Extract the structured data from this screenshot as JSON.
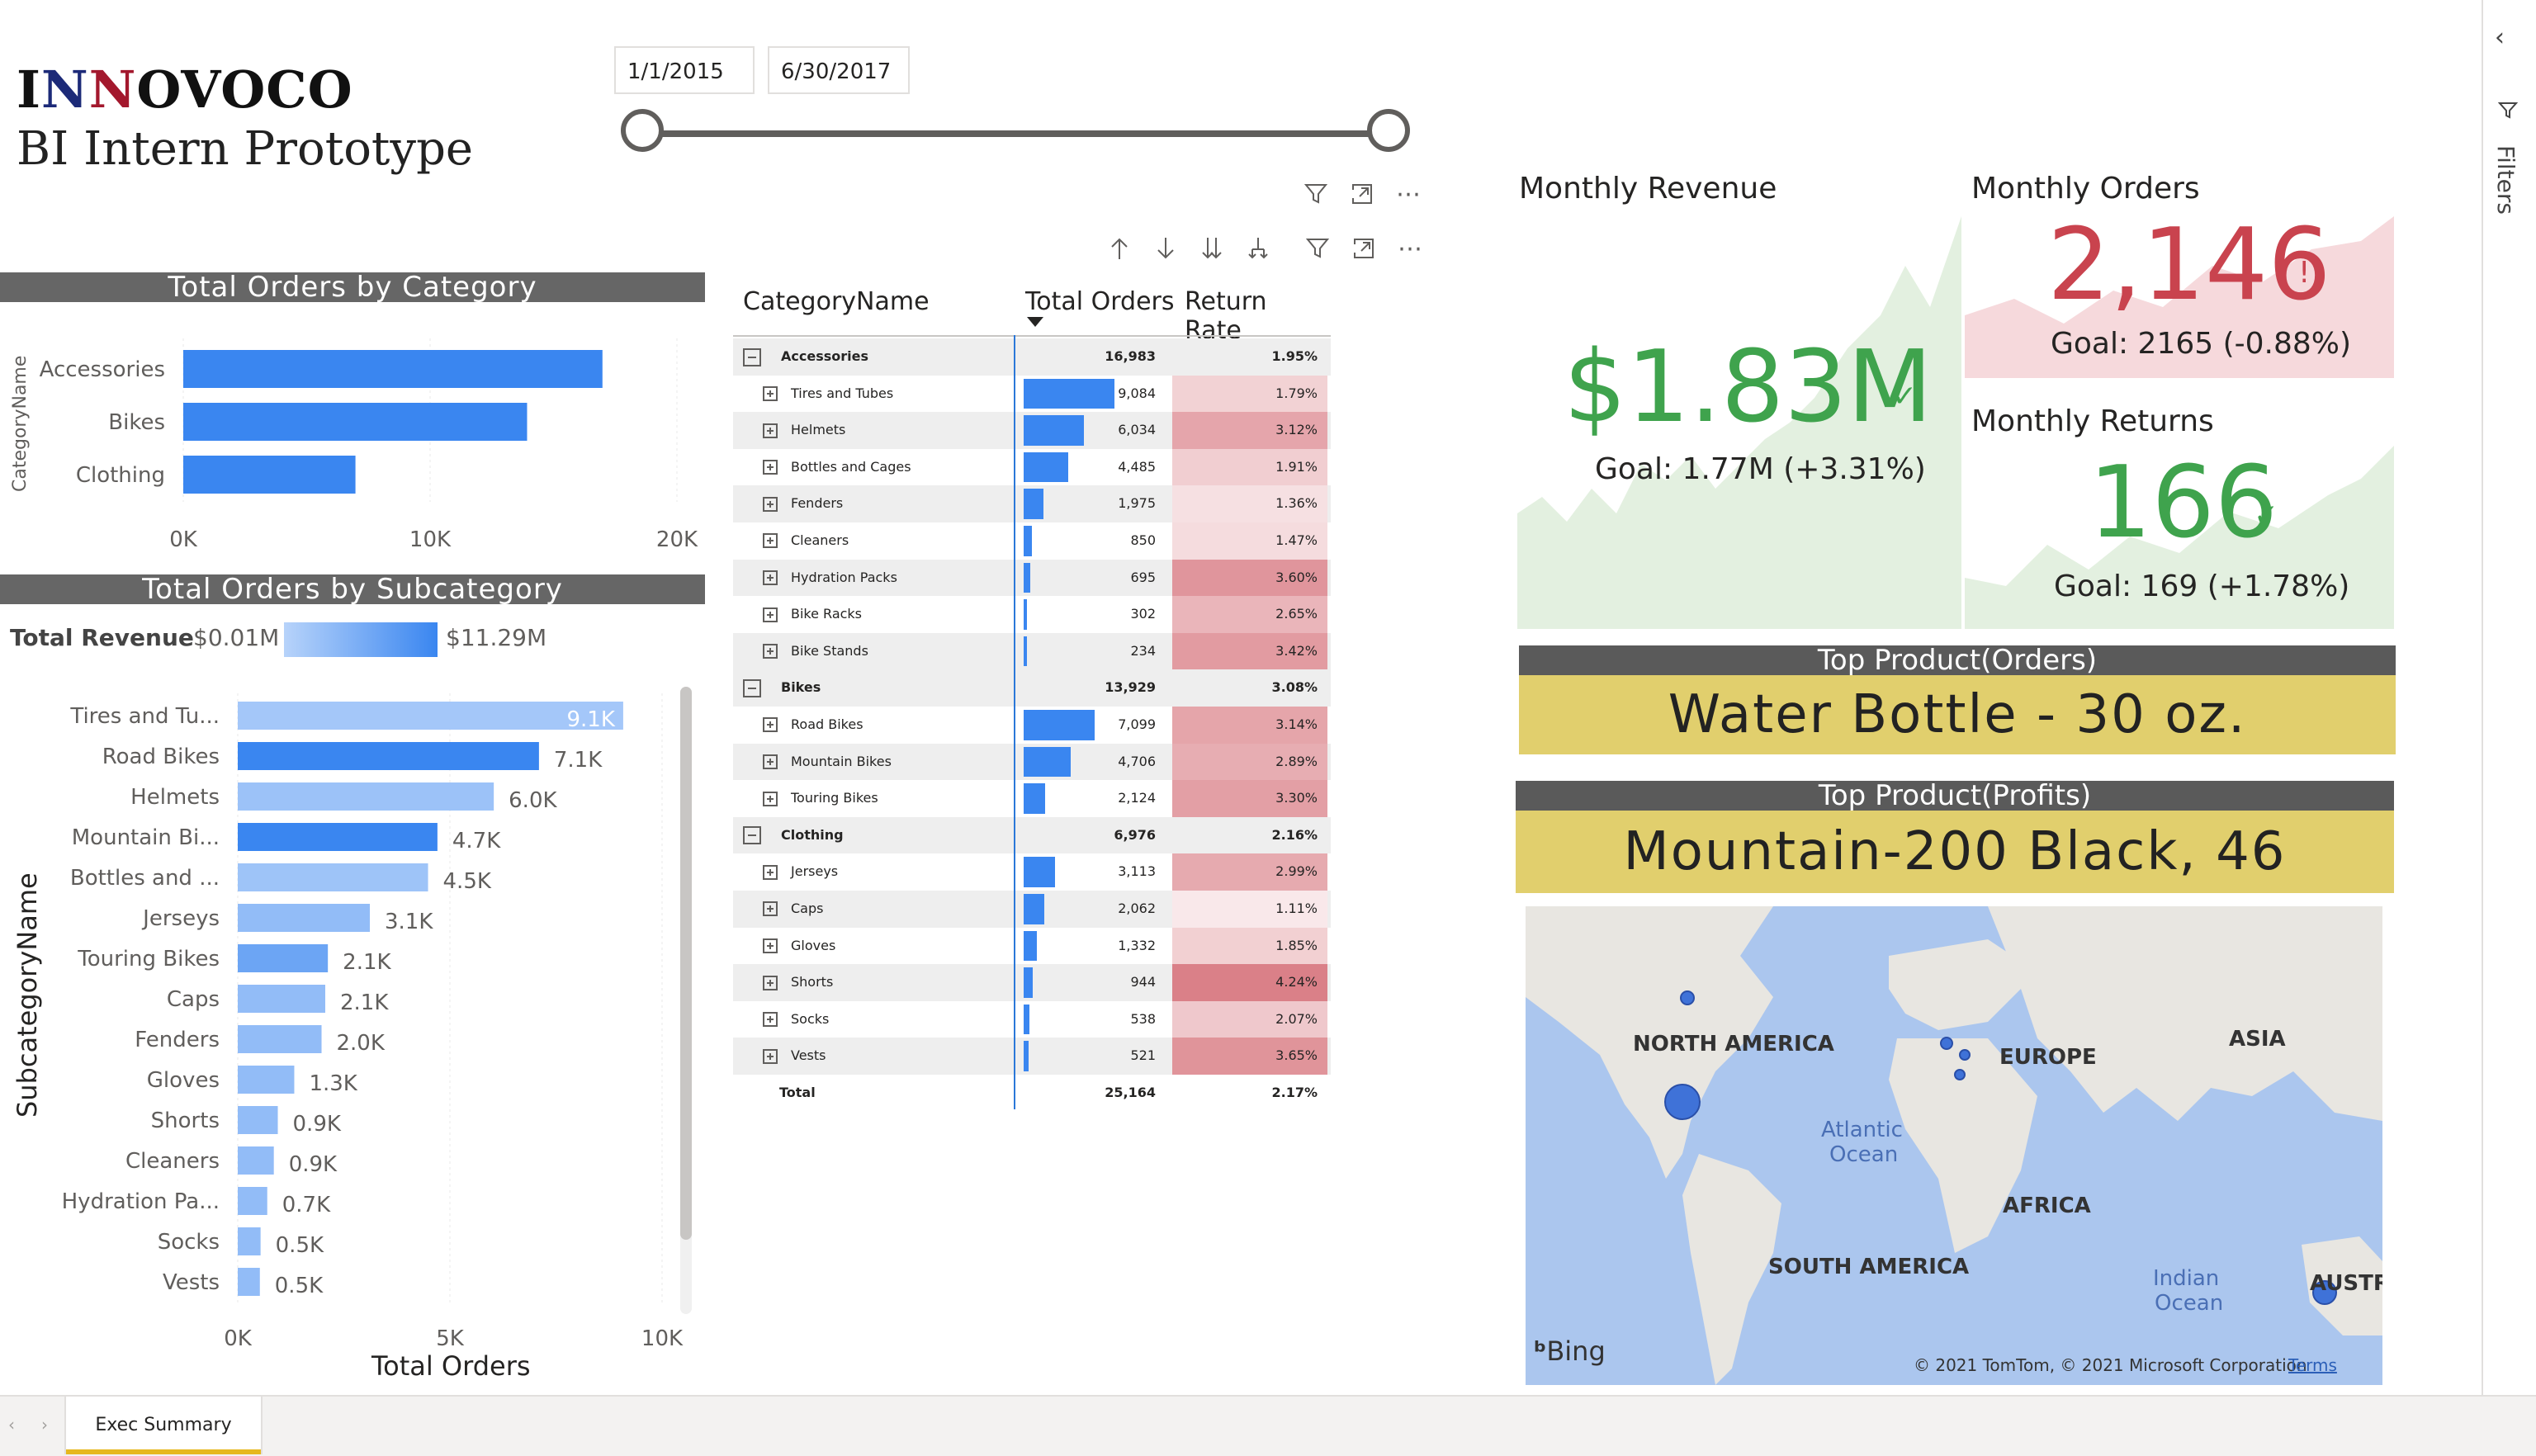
{
  "logo": {
    "part1": "I",
    "part2": "N",
    "part3": "N",
    "part4": "OVOCO"
  },
  "subtitle": "BI Intern Prototype",
  "slicer": {
    "start": "1/1/2015",
    "end": "6/30/2017"
  },
  "category_chart": {
    "title": "Total Orders by Category",
    "axis_label": "CategoryName",
    "ticks": [
      "0K",
      "10K",
      "20K"
    ]
  },
  "subcategory_chart": {
    "title": "Total Orders by Subcategory",
    "legend_label": "Total Revenue",
    "legend_min": "$0.01M",
    "legend_max": "$11.29M",
    "ylabel": "SubcategoryName",
    "xlabel": "Total Orders",
    "ticks": [
      "0K",
      "5K",
      "10K"
    ]
  },
  "chart_data": [
    {
      "type": "bar",
      "title": "Total Orders by Category",
      "ylabel": "CategoryName",
      "categories": [
        "Accessories",
        "Bikes",
        "Clothing"
      ],
      "values": [
        16983,
        13929,
        6976
      ],
      "xlim": [
        0,
        20000
      ],
      "grid": true
    },
    {
      "type": "bar",
      "title": "Total Orders by Subcategory",
      "xlabel": "Total Orders",
      "ylabel": "SubcategoryName",
      "categories": [
        "Tires and Tu...",
        "Road Bikes",
        "Helmets",
        "Mountain Bi...",
        "Bottles and ...",
        "Jerseys",
        "Touring Bikes",
        "Caps",
        "Fenders",
        "Gloves",
        "Shorts",
        "Cleaners",
        "Hydration Pa...",
        "Socks",
        "Vests"
      ],
      "values": [
        9084,
        7099,
        6034,
        4706,
        4485,
        3113,
        2124,
        2062,
        1975,
        1332,
        944,
        850,
        695,
        538,
        521
      ],
      "data_labels": [
        "9.1K",
        "7.1K",
        "6.0K",
        "4.7K",
        "4.5K",
        "3.1K",
        "2.1K",
        "2.1K",
        "2.0K",
        "1.3K",
        "0.9K",
        "0.9K",
        "0.7K",
        "0.5K",
        "0.5K"
      ],
      "color_scale": {
        "name": "Total Revenue",
        "min": "$0.01M",
        "max": "$11.29M"
      },
      "color_strength": [
        0.15,
        1.0,
        0.22,
        1.0,
        0.2,
        0.3,
        0.6,
        0.3,
        0.3,
        0.3,
        0.3,
        0.3,
        0.3,
        0.3,
        0.3
      ],
      "xlim": [
        0,
        10000
      ],
      "grid": true
    }
  ],
  "table": {
    "headers": [
      "CategoryName",
      "Total Orders",
      "Return Rate"
    ],
    "max_orders": 9084,
    "rows": [
      {
        "name": "Accessories",
        "orders": "16,983",
        "rate": "1.95%",
        "type": "cat"
      },
      {
        "name": "Tires and Tubes",
        "orders": "9,084",
        "rate": "1.79%",
        "value": 9084,
        "rr": 1.79,
        "type": "sub"
      },
      {
        "name": "Helmets",
        "orders": "6,034",
        "rate": "3.12%",
        "value": 6034,
        "rr": 3.12,
        "type": "sub"
      },
      {
        "name": "Bottles and Cages",
        "orders": "4,485",
        "rate": "1.91%",
        "value": 4485,
        "rr": 1.91,
        "type": "sub"
      },
      {
        "name": "Fenders",
        "orders": "1,975",
        "rate": "1.36%",
        "value": 1975,
        "rr": 1.36,
        "type": "sub"
      },
      {
        "name": "Cleaners",
        "orders": "850",
        "rate": "1.47%",
        "value": 850,
        "rr": 1.47,
        "type": "sub"
      },
      {
        "name": "Hydration Packs",
        "orders": "695",
        "rate": "3.60%",
        "value": 695,
        "rr": 3.6,
        "type": "sub"
      },
      {
        "name": "Bike Racks",
        "orders": "302",
        "rate": "2.65%",
        "value": 302,
        "rr": 2.65,
        "type": "sub"
      },
      {
        "name": "Bike Stands",
        "orders": "234",
        "rate": "3.42%",
        "value": 234,
        "rr": 3.42,
        "type": "sub"
      },
      {
        "name": "Bikes",
        "orders": "13,929",
        "rate": "3.08%",
        "type": "cat"
      },
      {
        "name": "Road Bikes",
        "orders": "7,099",
        "rate": "3.14%",
        "value": 7099,
        "rr": 3.14,
        "type": "sub"
      },
      {
        "name": "Mountain Bikes",
        "orders": "4,706",
        "rate": "2.89%",
        "value": 4706,
        "rr": 2.89,
        "type": "sub"
      },
      {
        "name": "Touring Bikes",
        "orders": "2,124",
        "rate": "3.30%",
        "value": 2124,
        "rr": 3.3,
        "type": "sub"
      },
      {
        "name": "Clothing",
        "orders": "6,976",
        "rate": "2.16%",
        "type": "cat"
      },
      {
        "name": "Jerseys",
        "orders": "3,113",
        "rate": "2.99%",
        "value": 3113,
        "rr": 2.99,
        "type": "sub"
      },
      {
        "name": "Caps",
        "orders": "2,062",
        "rate": "1.11%",
        "value": 2062,
        "rr": 1.11,
        "type": "sub"
      },
      {
        "name": "Gloves",
        "orders": "1,332",
        "rate": "1.85%",
        "value": 1332,
        "rr": 1.85,
        "type": "sub"
      },
      {
        "name": "Shorts",
        "orders": "944",
        "rate": "4.24%",
        "value": 944,
        "rr": 4.24,
        "type": "sub"
      },
      {
        "name": "Socks",
        "orders": "538",
        "rate": "2.07%",
        "value": 538,
        "rr": 2.07,
        "type": "sub"
      },
      {
        "name": "Vests",
        "orders": "521",
        "rate": "3.65%",
        "value": 521,
        "rr": 3.65,
        "type": "sub"
      },
      {
        "name": "Total",
        "orders": "25,164",
        "rate": "2.17%",
        "type": "total"
      }
    ]
  },
  "kpi": {
    "revenue": {
      "title": "Monthly Revenue",
      "value": "$1.83M",
      "goal": "Goal: 1.77M (+3.31%)",
      "status": "ok"
    },
    "orders": {
      "title": "Monthly Orders",
      "value": "2,146",
      "goal": "Goal: 2165 (-0.88%)",
      "status": "bad"
    },
    "returns": {
      "title": "Monthly Returns",
      "value": "166",
      "goal": "Goal: 169 (+1.78%)",
      "status": "ok"
    }
  },
  "colors": {
    "good": "#3fa34d",
    "bad": "#c9434e",
    "bar": "#3a86f0",
    "banner": "#e1cf6d",
    "header": "#666666"
  },
  "top_orders": {
    "header": "Top Product(Orders)",
    "value": "Water Bottle - 30 oz."
  },
  "top_profits": {
    "header": "Top Product(Profits)",
    "value": "Mountain-200 Black, 46"
  },
  "map": {
    "labels": [
      "NORTH AMERICA",
      "EUROPE",
      "ASIA",
      "Atlantic",
      "Ocean",
      "AFRICA",
      "SOUTH AMERICA",
      "Indian",
      "Ocean",
      "AUSTR"
    ],
    "logo": "Bing",
    "copyright": "© 2021 TomTom, © 2021 Microsoft Corporation",
    "terms": "Terms"
  },
  "filters_pane": {
    "label": "Filters"
  },
  "tabs": [
    {
      "label": "Exec Summary",
      "active": true
    }
  ]
}
